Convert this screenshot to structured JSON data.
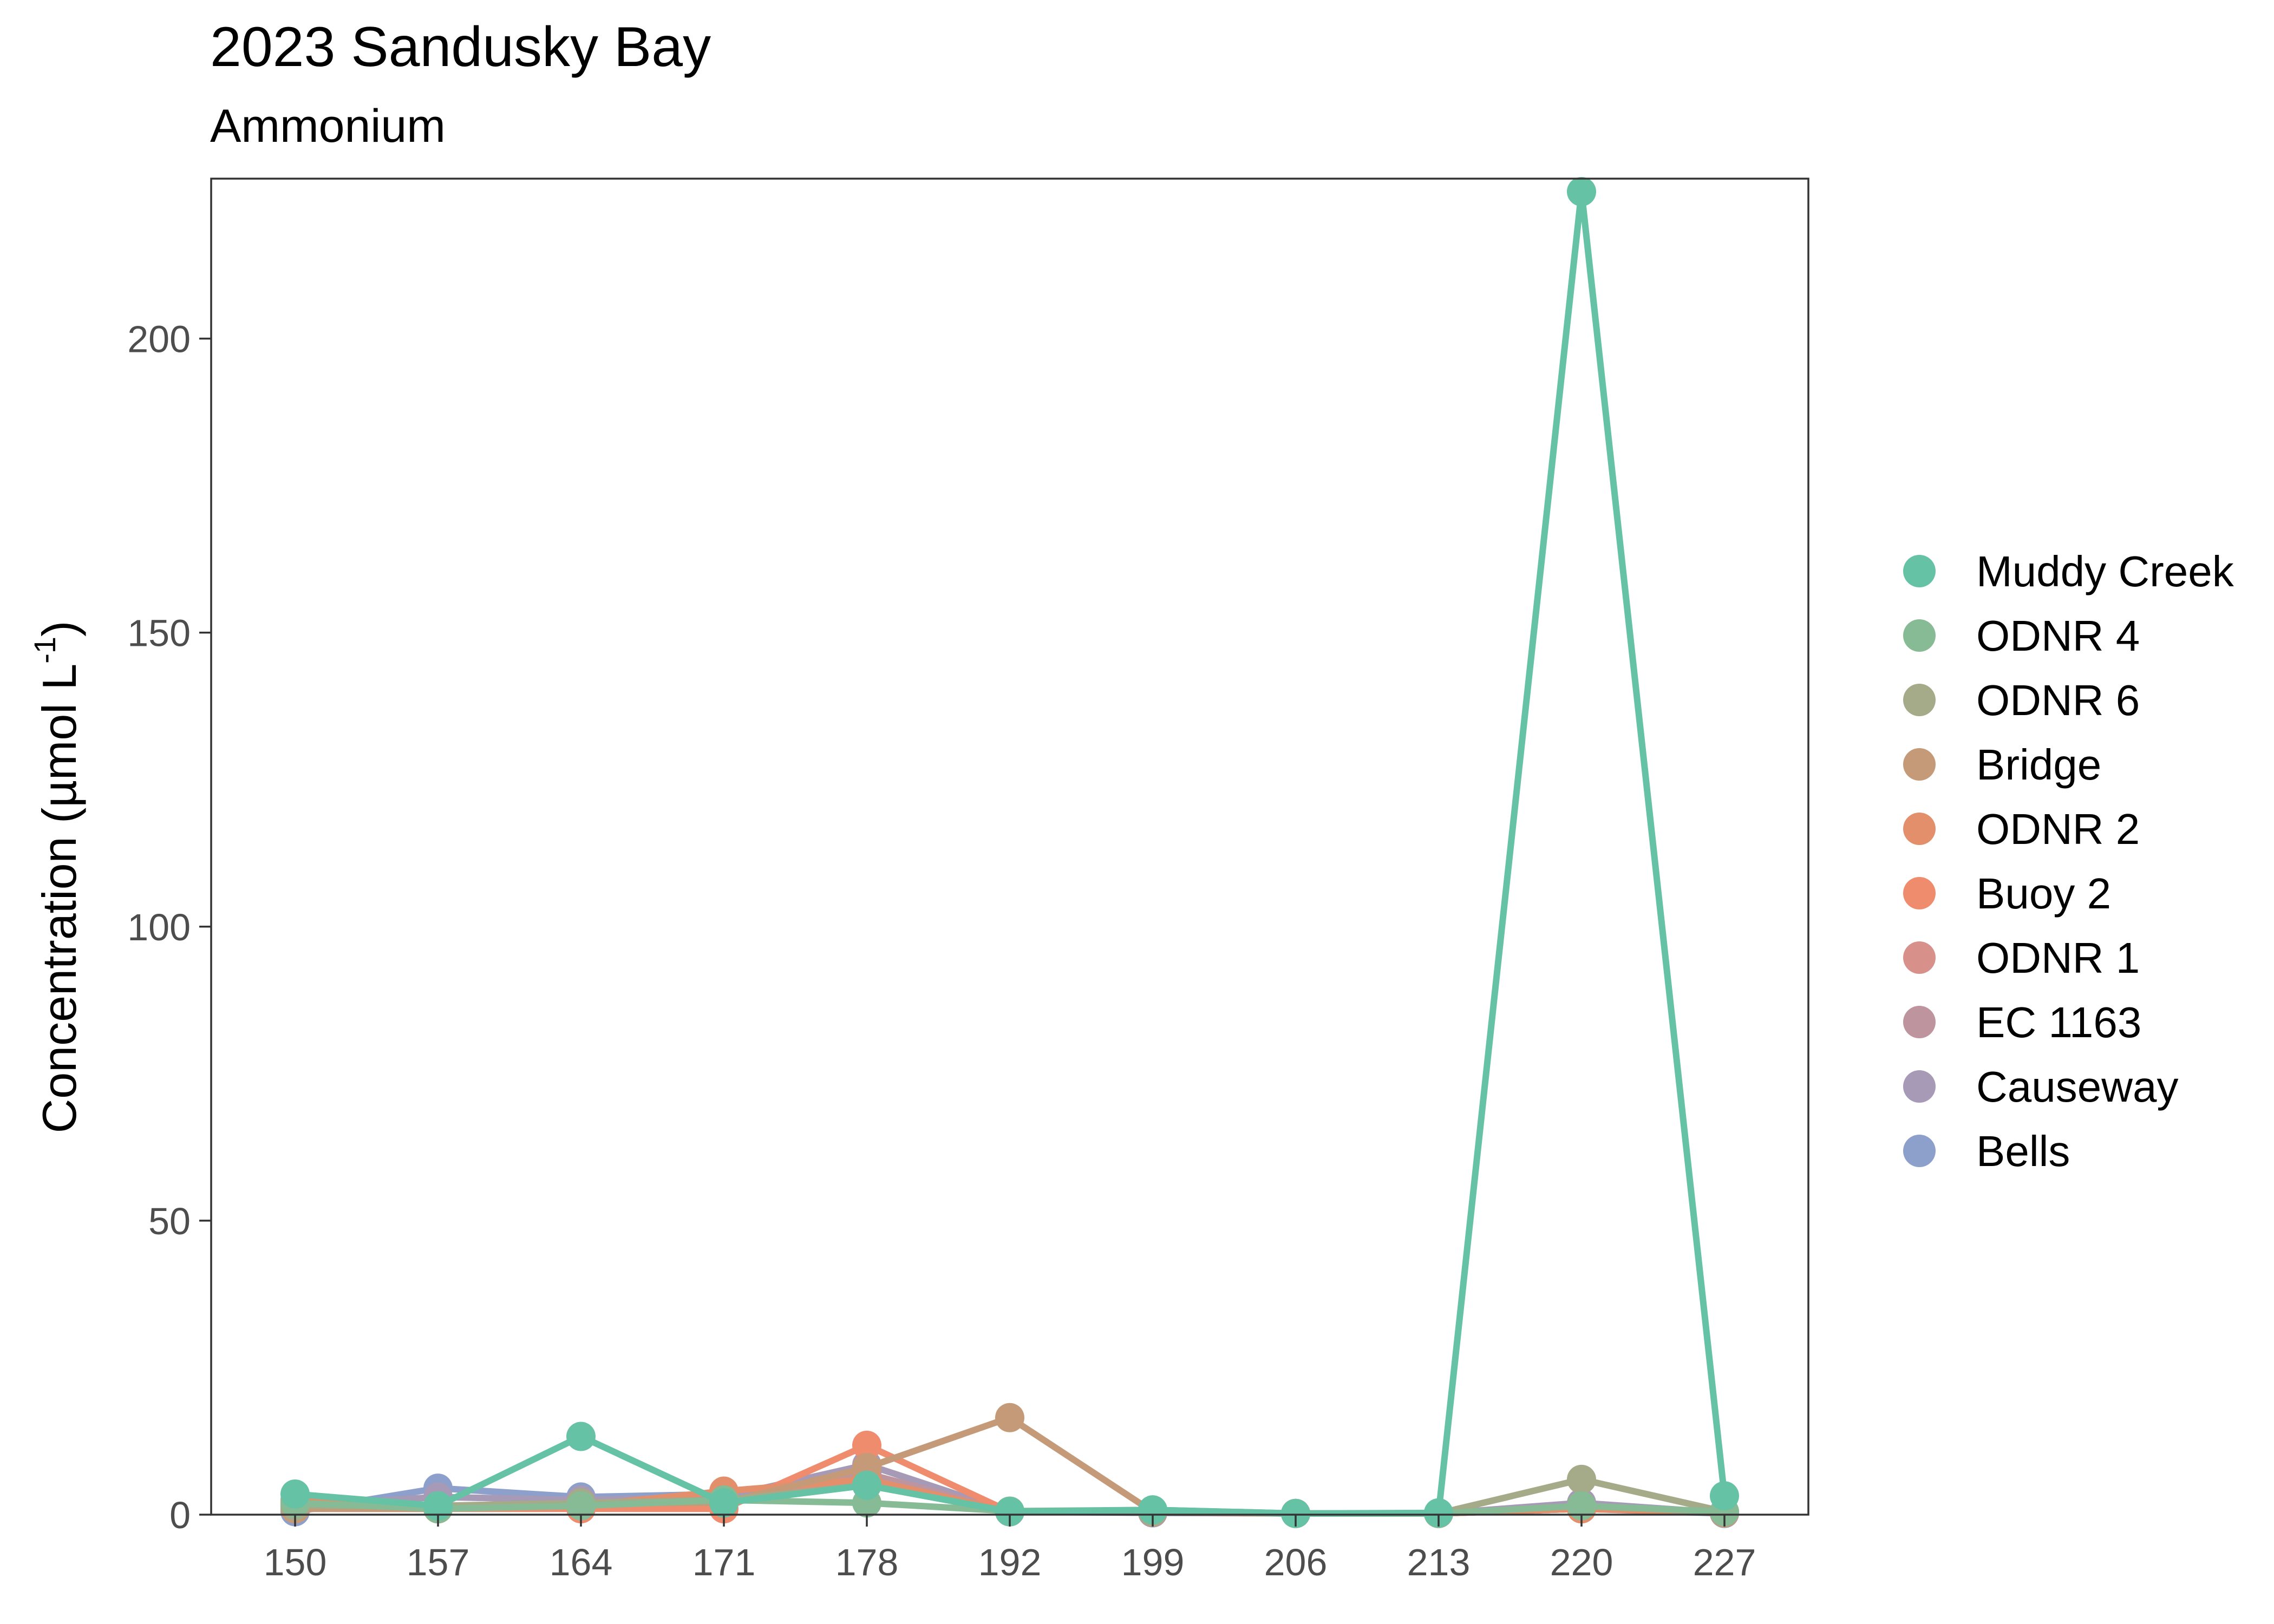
{
  "chart_data": {
    "type": "line",
    "title": "2023 Sandusky Bay",
    "subtitle": "Ammonium",
    "xlabel": "",
    "ylabel": "Concentration (µmol L",
    "ylabel_superscript": "-1",
    "ylabel_close": ")",
    "categories": [
      "150",
      "157",
      "164",
      "171",
      "178",
      "192",
      "199",
      "206",
      "213",
      "220",
      "227"
    ],
    "y_ticks": [
      0,
      50,
      100,
      150,
      200
    ],
    "ylim": [
      0,
      225
    ],
    "grid": false,
    "legend_position": "right",
    "series": [
      {
        "name": "Muddy Creek",
        "color": "#66C2A5",
        "values": [
          3.5,
          1.5,
          13.3,
          2.0,
          5.0,
          0.5,
          0.8,
          0.2,
          0.3,
          225.0,
          3.2
        ]
      },
      {
        "name": "ODNR 4",
        "color": "#86BB96",
        "values": [
          2.0,
          1.0,
          1.5,
          2.5,
          2.0,
          0.6,
          0.8,
          0.2,
          0.2,
          1.5,
          0.5
        ]
      },
      {
        "name": "ODNR 6",
        "color": "#A5AA88",
        "values": [
          1.5,
          1.5,
          2.0,
          2.5,
          5.0,
          0.5,
          0.5,
          0.2,
          0.2,
          6.0,
          0.5
        ]
      },
      {
        "name": "Bridge",
        "color": "#C49A78",
        "values": [
          1.0,
          1.0,
          2.0,
          2.0,
          8.0,
          16.5,
          0.5,
          0.2,
          0.2,
          1.5,
          0.3
        ]
      },
      {
        "name": "ODNR 2",
        "color": "#E38F6B",
        "values": [
          2.5,
          1.0,
          1.5,
          4.0,
          6.0,
          0.5,
          0.5,
          0.2,
          0.2,
          1.0,
          0.3
        ]
      },
      {
        "name": "Buoy 2",
        "color": "#F08C6E",
        "values": [
          1.0,
          1.0,
          1.0,
          1.0,
          11.8,
          0.5,
          0.5,
          0.2,
          0.2,
          1.0,
          0.3
        ]
      },
      {
        "name": "ODNR 1",
        "color": "#D7918A",
        "values": [
          1.5,
          1.0,
          1.5,
          2.0,
          6.0,
          0.5,
          0.4,
          0.2,
          0.2,
          1.0,
          0.3
        ]
      },
      {
        "name": "EC 1163",
        "color": "#BE949F",
        "values": [
          1.0,
          1.0,
          1.5,
          2.0,
          7.0,
          0.5,
          0.4,
          0.2,
          0.2,
          1.5,
          0.3
        ]
      },
      {
        "name": "Causeway",
        "color": "#A69AB6",
        "values": [
          1.5,
          3.0,
          2.5,
          3.0,
          8.5,
          0.5,
          0.4,
          0.2,
          0.2,
          2.0,
          0.3
        ]
      },
      {
        "name": "Bells",
        "color": "#8DA0CB",
        "values": [
          0.5,
          4.5,
          3.0,
          3.5,
          5.5,
          0.5,
          0.3,
          0.2,
          0.2,
          1.0,
          0.2
        ]
      }
    ]
  }
}
